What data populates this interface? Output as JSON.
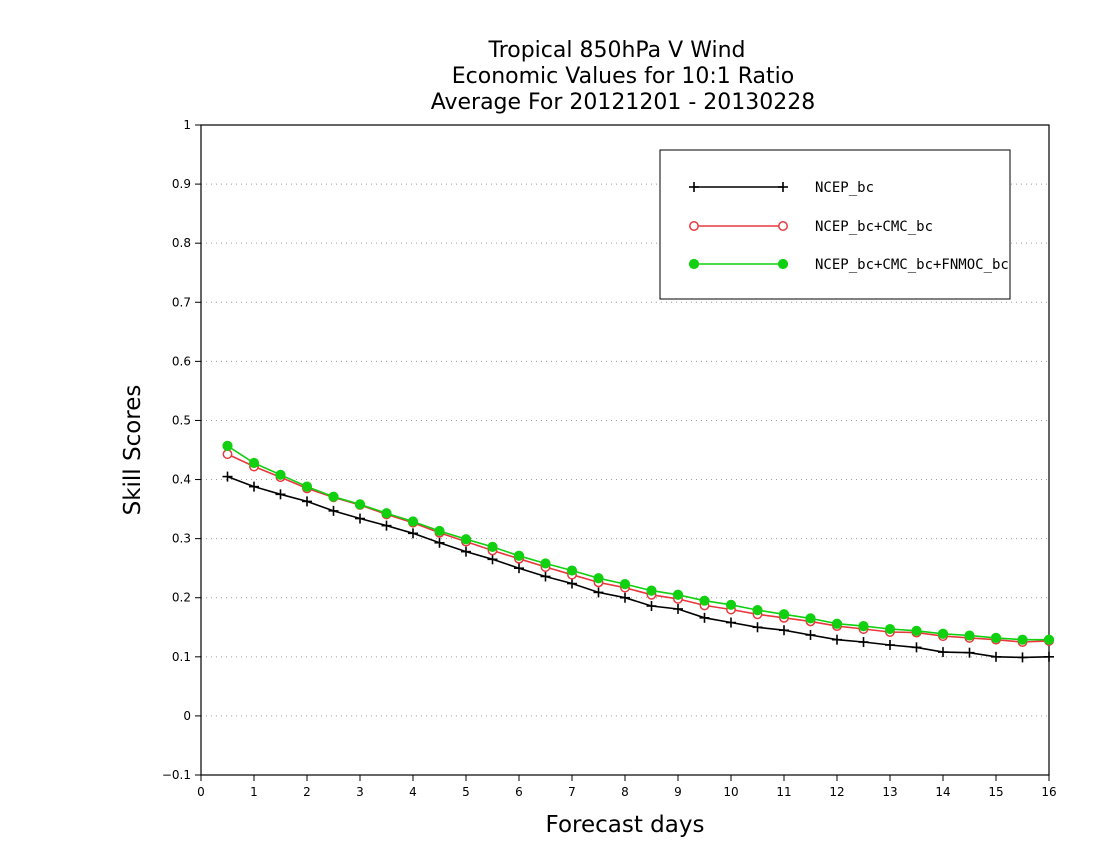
{
  "chart_data": {
    "type": "line",
    "title": "Tropical 850hPa V Wind",
    "subtitle": [
      "Economic Values for 10:1 Ratio",
      "Average For 20121201 - 20130228"
    ],
    "xlabel": "Forecast days",
    "ylabel": "Skill Scores",
    "xlim": [
      0,
      16
    ],
    "ylim": [
      -0.1,
      1
    ],
    "xticks": [
      "0",
      "1",
      "2",
      "3",
      "4",
      "5",
      "6",
      "7",
      "8",
      "9",
      "10",
      "11",
      "12",
      "13",
      "14",
      "15",
      "16"
    ],
    "yticks": [
      "−0.1",
      "0",
      "0.1",
      "0.2",
      "0.3",
      "0.4",
      "0.5",
      "0.6",
      "0.7",
      "0.8",
      "0.9",
      "1"
    ],
    "grid": "horizontal-dotted",
    "legend_position": "top-right",
    "x": [
      0.5,
      1,
      1.5,
      2,
      2.5,
      3,
      3.5,
      4,
      4.5,
      5,
      5.5,
      6,
      6.5,
      7,
      7.5,
      8,
      8.5,
      9,
      9.5,
      10,
      10.5,
      11,
      11.5,
      12,
      12.5,
      13,
      13.5,
      14,
      14.5,
      15,
      15.5,
      16
    ],
    "series": [
      {
        "name": "NCEP_bc",
        "color": "#000000",
        "marker": "plus",
        "values": [
          0.405,
          0.388,
          0.375,
          0.363,
          0.347,
          0.334,
          0.322,
          0.309,
          0.293,
          0.278,
          0.265,
          0.25,
          0.236,
          0.224,
          0.209,
          0.2,
          0.186,
          0.181,
          0.166,
          0.158,
          0.15,
          0.145,
          0.137,
          0.129,
          0.125,
          0.12,
          0.116,
          0.108,
          0.107,
          0.1,
          0.099,
          0.1
        ]
      },
      {
        "name": "NCEP_bc+CMC_bc",
        "color": "#e8383d",
        "marker": "open-circle",
        "values": [
          0.443,
          0.422,
          0.404,
          0.385,
          0.37,
          0.357,
          0.341,
          0.327,
          0.31,
          0.295,
          0.28,
          0.266,
          0.252,
          0.239,
          0.226,
          0.217,
          0.205,
          0.198,
          0.187,
          0.18,
          0.172,
          0.166,
          0.16,
          0.152,
          0.147,
          0.142,
          0.141,
          0.135,
          0.132,
          0.129,
          0.125,
          0.127
        ]
      },
      {
        "name": "NCEP_bc+CMC_bc+FNMOC_bc",
        "color": "#10d010",
        "marker": "filled-circle",
        "values": [
          0.457,
          0.428,
          0.408,
          0.388,
          0.371,
          0.358,
          0.343,
          0.329,
          0.313,
          0.299,
          0.286,
          0.271,
          0.258,
          0.246,
          0.233,
          0.223,
          0.212,
          0.205,
          0.195,
          0.188,
          0.179,
          0.172,
          0.165,
          0.156,
          0.152,
          0.147,
          0.144,
          0.139,
          0.136,
          0.132,
          0.129,
          0.129
        ]
      }
    ]
  }
}
